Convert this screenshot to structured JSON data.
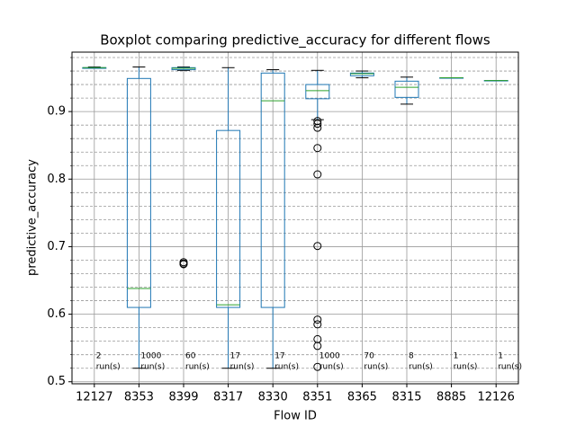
{
  "chart_data": {
    "type": "boxplot",
    "title": "Boxplot comparing predictive_accuracy for different flows",
    "x_label": "Flow ID",
    "y_label": "predictive_accuracy",
    "categories": [
      "12127",
      "8353",
      "8399",
      "8317",
      "8330",
      "8351",
      "8365",
      "8315",
      "8885",
      "12126"
    ],
    "boxes": [
      {
        "low": 0.964,
        "q1": 0.964,
        "median": 0.965,
        "q3": 0.965,
        "high": 0.966,
        "outliers": []
      },
      {
        "low": 0.52,
        "q1": 0.61,
        "median": 0.638,
        "q3": 0.949,
        "high": 0.966,
        "outliers": []
      },
      {
        "low": 0.961,
        "q1": 0.962,
        "median": 0.964,
        "q3": 0.965,
        "high": 0.966,
        "outliers": [
          0.677,
          0.675,
          0.674
        ]
      },
      {
        "low": 0.52,
        "q1": 0.61,
        "median": 0.614,
        "q3": 0.872,
        "high": 0.965,
        "outliers": []
      },
      {
        "low": 0.52,
        "q1": 0.61,
        "median": 0.916,
        "q3": 0.957,
        "high": 0.962,
        "outliers": []
      },
      {
        "low": 0.888,
        "q1": 0.919,
        "median": 0.931,
        "q3": 0.94,
        "high": 0.961,
        "outliers": [
          0.886,
          0.882,
          0.876,
          0.846,
          0.807,
          0.701,
          0.592,
          0.585,
          0.563,
          0.553,
          0.522
        ]
      },
      {
        "low": 0.95,
        "q1": 0.953,
        "median": 0.956,
        "q3": 0.957,
        "high": 0.96,
        "outliers": []
      },
      {
        "low": 0.911,
        "q1": 0.921,
        "median": 0.936,
        "q3": 0.945,
        "high": 0.951,
        "outliers": []
      },
      {
        "low": 0.95,
        "q1": 0.95,
        "median": 0.95,
        "q3": 0.95,
        "high": 0.95,
        "outliers": []
      },
      {
        "low": 0.946,
        "q1": 0.946,
        "median": 0.946,
        "q3": 0.946,
        "high": 0.946,
        "outliers": []
      }
    ],
    "run_counts": [
      2,
      1000,
      60,
      17,
      17,
      1000,
      70,
      8,
      1,
      1
    ],
    "run_unit": "run(s)",
    "box_color": "#1f77b4",
    "median_color": "#2ca02c",
    "whisker_color": "#000000",
    "ylim": [
      0.497,
      0.988
    ],
    "yticks": [
      0.5,
      0.6,
      0.7,
      0.8,
      0.9
    ],
    "yminor": [
      0.52,
      0.54,
      0.56,
      0.58,
      0.62,
      0.64,
      0.66,
      0.68,
      0.72,
      0.74,
      0.76,
      0.78,
      0.82,
      0.84,
      0.86,
      0.88,
      0.92,
      0.94,
      0.96,
      0.98
    ],
    "grid": true
  }
}
